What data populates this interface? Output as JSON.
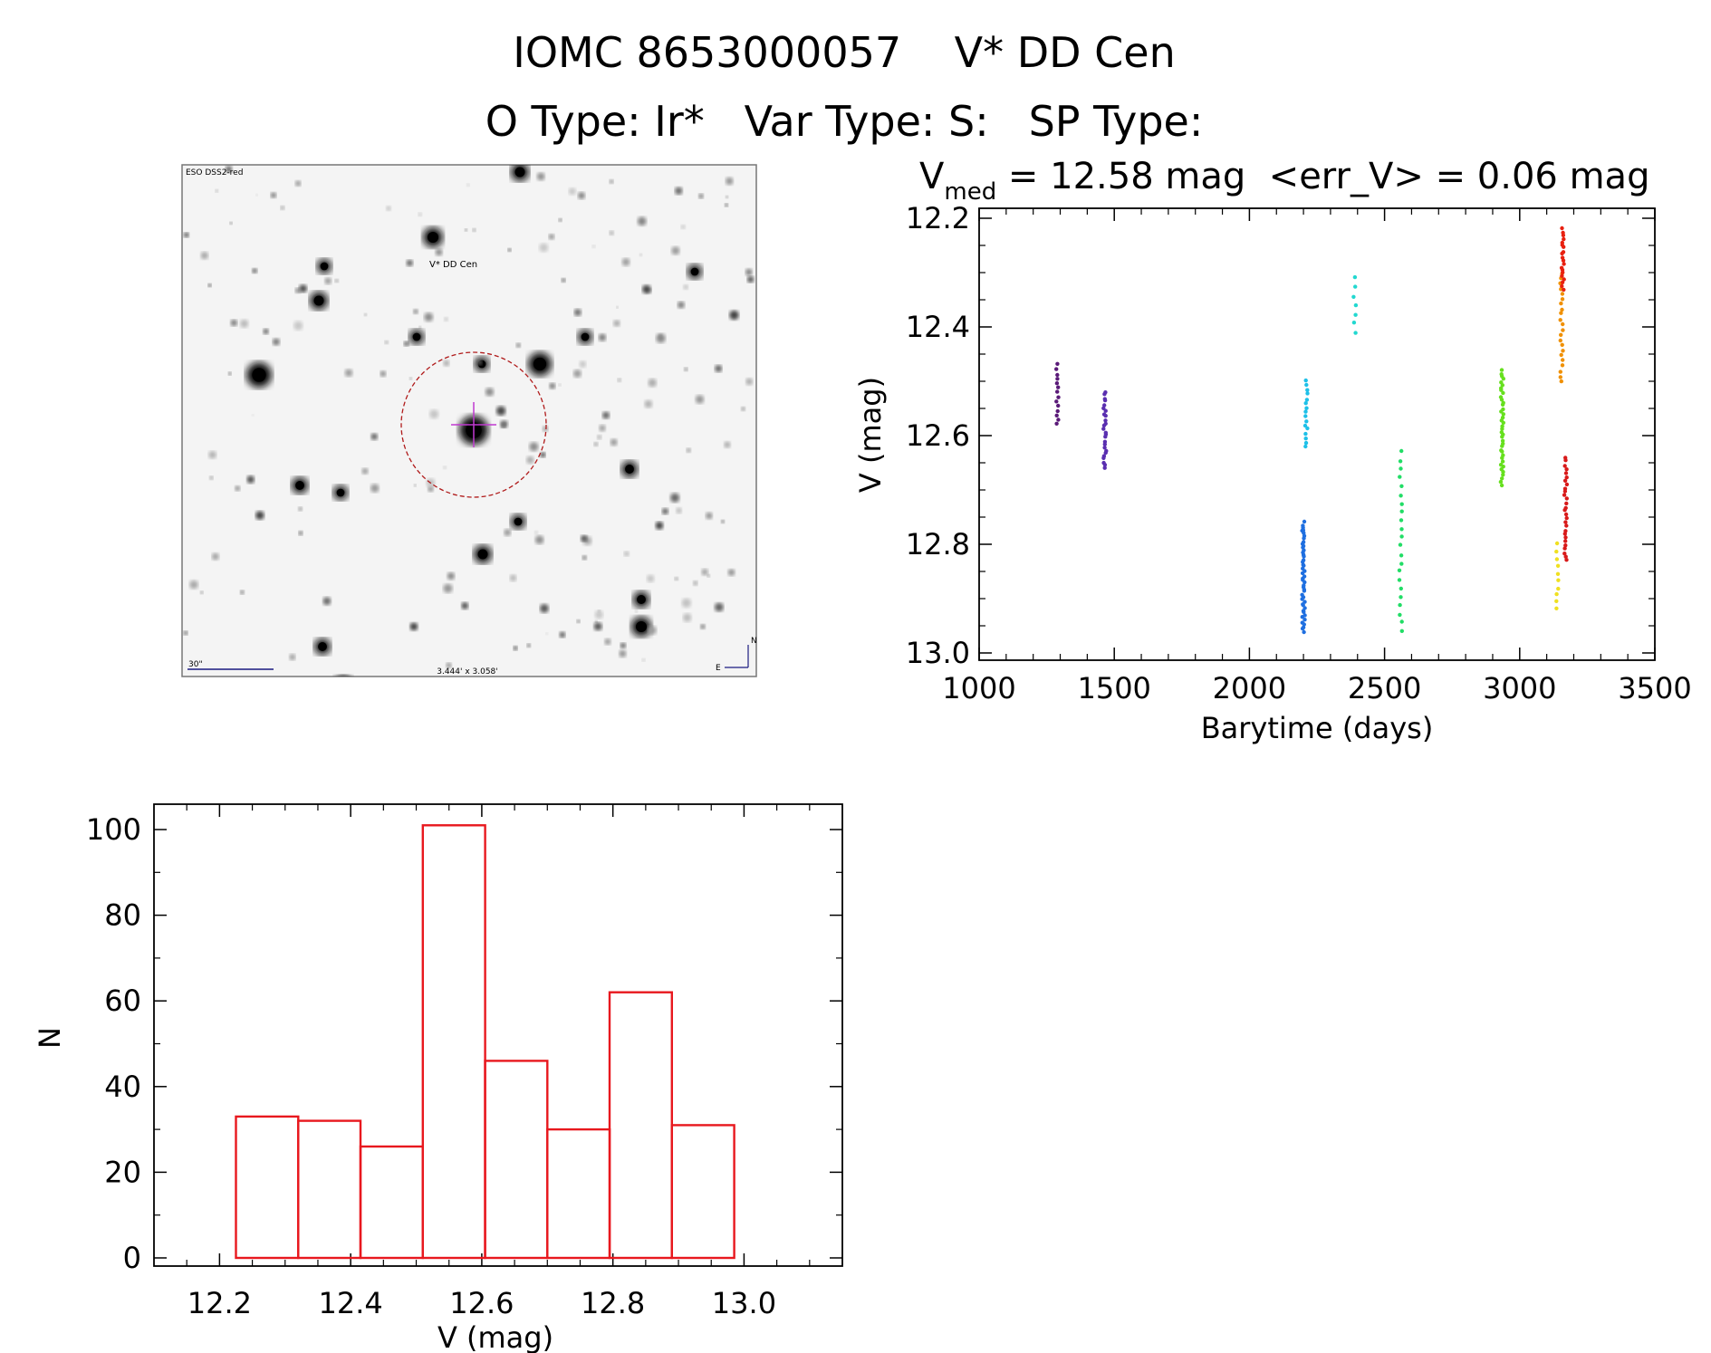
{
  "header": {
    "title": "IOMC 8653000057    V* DD Cen",
    "subtitle": "O Type: Ir*   Var Type: S:   SP Type:"
  },
  "finder": {
    "survey": "ESO DSS2-red",
    "target_label": "V* DD Cen",
    "scale_label": "30\"",
    "fov_label": "3.444' x 3.058'",
    "north_label": "N",
    "east_label": "E"
  },
  "chart_data": [
    {
      "type": "scatter",
      "title_parts": {
        "v": "V",
        "sub": "med",
        "rest": " = 12.58 mag  <err_V> = 0.06 mag"
      },
      "xlabel": "Barytime (days)",
      "ylabel": "V (mag)",
      "xlim": [
        1000,
        3500
      ],
      "ylim": [
        13.0,
        12.2
      ],
      "xticks": [
        1000,
        1500,
        2000,
        2500,
        3000,
        3500
      ],
      "yticks": [
        12.2,
        12.4,
        12.6,
        12.8,
        13.0
      ],
      "series": [
        {
          "color": "#5a1a78",
          "x": 1290,
          "ymin": 12.47,
          "ymax": 12.58,
          "n": 14
        },
        {
          "color": "#5a2fb0",
          "x": 1465,
          "ymin": 12.52,
          "ymax": 12.66,
          "n": 26
        },
        {
          "color": "#1ec0e8",
          "x": 2210,
          "ymin": 12.5,
          "ymax": 12.62,
          "n": 16
        },
        {
          "color": "#1f6fe0",
          "x": 2200,
          "ymin": 12.76,
          "ymax": 12.96,
          "n": 48
        },
        {
          "color": "#22d8d0",
          "x": 2390,
          "ymin": 12.31,
          "ymax": 12.41,
          "n": 7
        },
        {
          "color": "#22dd66",
          "x": 2560,
          "ymin": 12.63,
          "ymax": 12.96,
          "n": 22
        },
        {
          "color": "#66e01e",
          "x": 2935,
          "ymin": 12.48,
          "ymax": 12.69,
          "n": 40
        },
        {
          "color": "#f0e020",
          "x": 3140,
          "ymin": 12.8,
          "ymax": 12.92,
          "n": 10
        },
        {
          "color": "#f09000",
          "x": 3155,
          "ymin": 12.3,
          "ymax": 12.5,
          "n": 22
        },
        {
          "color": "#e82010",
          "x": 3160,
          "ymin": 12.22,
          "ymax": 12.33,
          "n": 20
        },
        {
          "color": "#d81a1a",
          "x": 3170,
          "ymin": 12.64,
          "ymax": 12.83,
          "n": 28
        }
      ]
    },
    {
      "type": "bar",
      "xlabel": "V (mag)",
      "ylabel": "N",
      "xlim": [
        12.1,
        13.15
      ],
      "ylim": [
        0,
        106
      ],
      "xticks": [
        12.2,
        12.4,
        12.6,
        12.8,
        13.0
      ],
      "yticks": [
        0,
        20,
        40,
        60,
        80,
        100
      ],
      "bin_edges": [
        12.225,
        12.32,
        12.415,
        12.51,
        12.605,
        12.7,
        12.795,
        12.89,
        12.985
      ],
      "values": [
        33,
        32,
        26,
        101,
        46,
        30,
        62,
        31
      ],
      "color": "#e8181e"
    }
  ]
}
